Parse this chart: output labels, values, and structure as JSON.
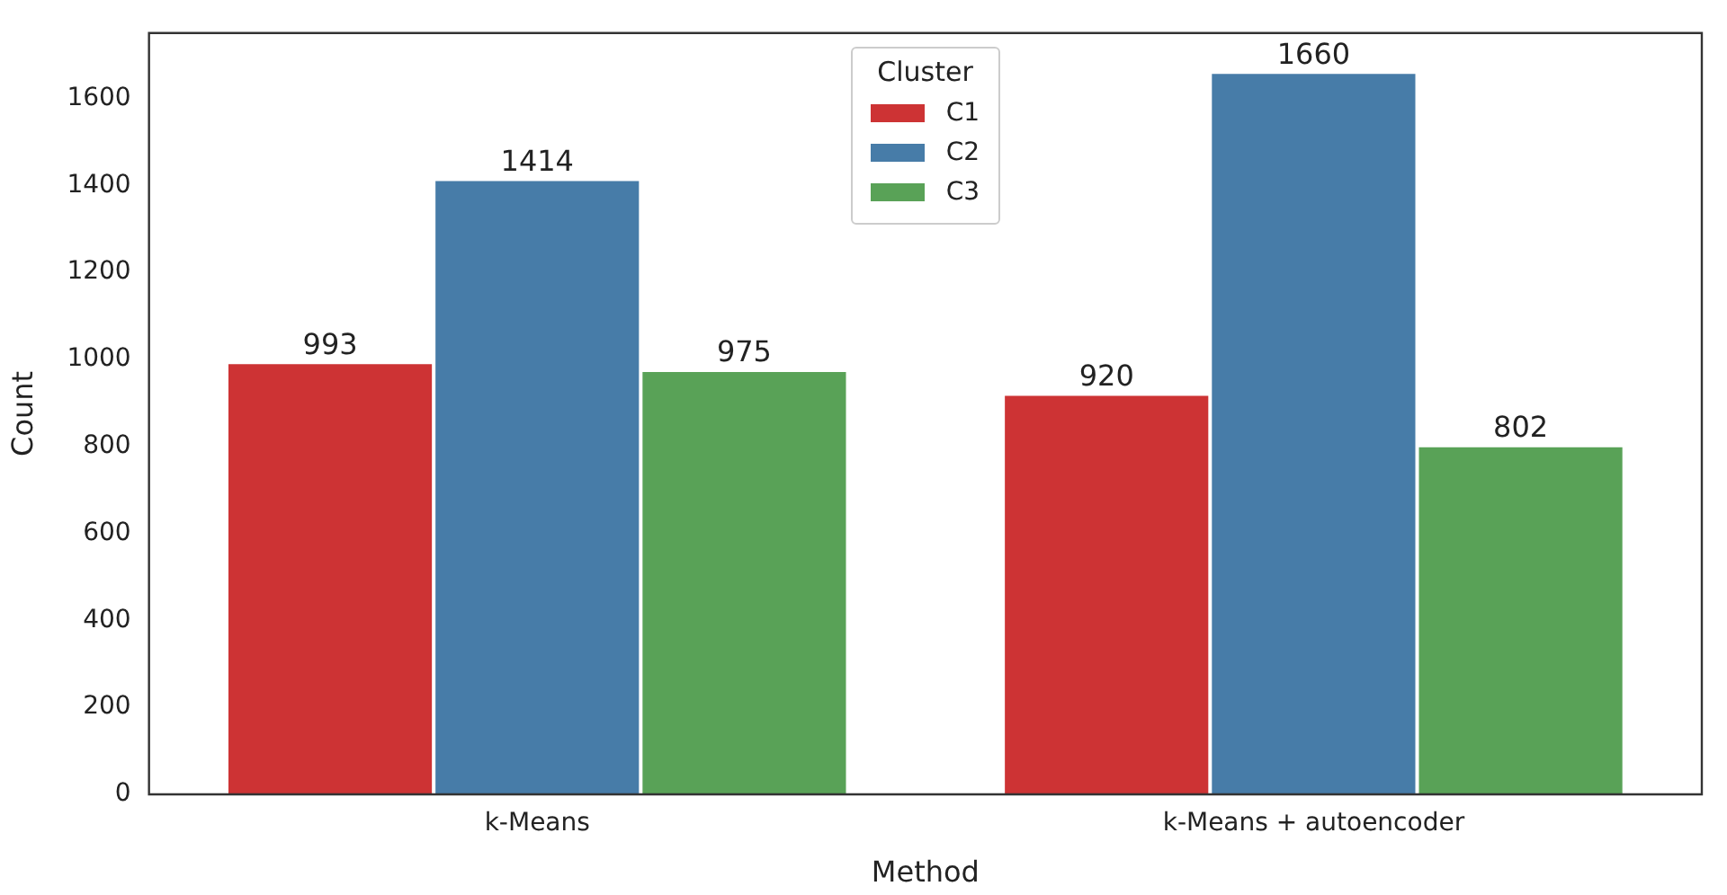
{
  "chart_data": {
    "type": "bar",
    "xlabel": "Method",
    "ylabel": "Count",
    "legend_title": "Cluster",
    "categories": [
      "k-Means",
      "k-Means + autoencoder"
    ],
    "series": [
      {
        "name": "C1",
        "color": "#cd3334",
        "values": [
          993,
          920
        ]
      },
      {
        "name": "C2",
        "color": "#477ca8",
        "values": [
          1414,
          1660
        ]
      },
      {
        "name": "C3",
        "color": "#59a257",
        "values": [
          975,
          802
        ]
      }
    ],
    "ylim": [
      0,
      1750
    ],
    "yticks": [
      0,
      200,
      400,
      600,
      800,
      1000,
      1200,
      1400,
      1600
    ],
    "grid": false,
    "legend": "top",
    "data_labels": true
  }
}
